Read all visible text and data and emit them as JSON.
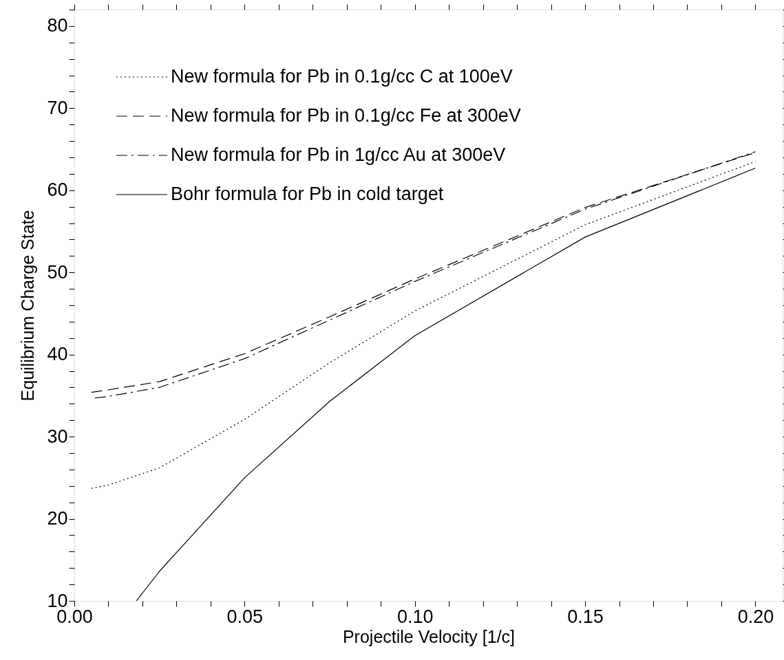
{
  "chart_data": {
    "type": "line",
    "xlabel": "Projectile Velocity [1/c]",
    "ylabel": "Equilibrium Charge State",
    "xlim": [
      0,
      0.208
    ],
    "ylim": [
      10,
      82
    ],
    "xticks": [
      {
        "value": 0,
        "label": "0.00"
      },
      {
        "value": 0.01,
        "label": null
      },
      {
        "value": 0.02,
        "label": null
      },
      {
        "value": 0.03,
        "label": null
      },
      {
        "value": 0.04,
        "label": null
      },
      {
        "value": 0.05,
        "label": "0.05"
      },
      {
        "value": 0.06,
        "label": null
      },
      {
        "value": 0.07,
        "label": null
      },
      {
        "value": 0.08,
        "label": null
      },
      {
        "value": 0.09,
        "label": null
      },
      {
        "value": 0.1,
        "label": "0.10"
      },
      {
        "value": 0.11,
        "label": null
      },
      {
        "value": 0.12,
        "label": null
      },
      {
        "value": 0.13,
        "label": null
      },
      {
        "value": 0.14,
        "label": null
      },
      {
        "value": 0.15,
        "label": "0.15"
      },
      {
        "value": 0.16,
        "label": null
      },
      {
        "value": 0.17,
        "label": null
      },
      {
        "value": 0.18,
        "label": null
      },
      {
        "value": 0.19,
        "label": null
      },
      {
        "value": 0.2,
        "label": "0.20"
      }
    ],
    "yticks": [
      10,
      {
        "value": 12,
        "label": null
      },
      {
        "value": 14,
        "label": null
      },
      {
        "value": 16,
        "label": null
      },
      {
        "value": 18,
        "label": null
      },
      20,
      {
        "value": 22,
        "label": null
      },
      {
        "value": 24,
        "label": null
      },
      {
        "value": 26,
        "label": null
      },
      {
        "value": 28,
        "label": null
      },
      30,
      {
        "value": 32,
        "label": null
      },
      {
        "value": 34,
        "label": null
      },
      {
        "value": 36,
        "label": null
      },
      {
        "value": 38,
        "label": null
      },
      40,
      {
        "value": 42,
        "label": null
      },
      {
        "value": 44,
        "label": null
      },
      {
        "value": 46,
        "label": null
      },
      {
        "value": 48,
        "label": null
      },
      50,
      {
        "value": 52,
        "label": null
      },
      {
        "value": 54,
        "label": null
      },
      {
        "value": 56,
        "label": null
      },
      {
        "value": 58,
        "label": null
      },
      60,
      {
        "value": 62,
        "label": null
      },
      {
        "value": 64,
        "label": null
      },
      {
        "value": 66,
        "label": null
      },
      {
        "value": 68,
        "label": null
      },
      70,
      {
        "value": 72,
        "label": null
      },
      {
        "value": 74,
        "label": null
      },
      {
        "value": 76,
        "label": null
      },
      {
        "value": 78,
        "label": null
      },
      80,
      {
        "value": 82,
        "label": null
      }
    ],
    "grid": false,
    "legend": "top left",
    "marker": "none",
    "series": [
      {
        "name": "New formula for Pb in 0.1g/cc C at 100eV",
        "color": "#000000",
        "line_style": "dotted",
        "x": [
          0.005,
          0.01,
          0.025,
          0.05,
          0.075,
          0.1,
          0.15,
          0.2
        ],
        "values": [
          23.7,
          24.1,
          26.2,
          32.1,
          39.0,
          45.3,
          55.8,
          63.5
        ]
      },
      {
        "name": "New formula for Pb in 0.1g/cc Fe at 300eV",
        "color": "#000000",
        "line_style": "dashed",
        "x": [
          0.005,
          0.01,
          0.025,
          0.05,
          0.075,
          0.1,
          0.15,
          0.2
        ],
        "values": [
          35.4,
          35.7,
          36.7,
          40.1,
          44.6,
          49.2,
          57.9,
          64.6
        ]
      },
      {
        "name": "New formula for Pb in 1g/cc Au at 300eV",
        "color": "#000000",
        "line_style": "dashdot",
        "x": [
          0.006,
          0.01,
          0.025,
          0.05,
          0.075,
          0.1,
          0.15,
          0.2
        ],
        "values": [
          34.7,
          34.9,
          36.0,
          39.5,
          44.2,
          48.9,
          57.7,
          64.7
        ]
      },
      {
        "name": "Bohr formula for Pb in cold target",
        "color": "#000000",
        "line_style": "solid",
        "x": [
          0.0182,
          0.025,
          0.05,
          0.075,
          0.1,
          0.15,
          0.2
        ],
        "values": [
          10,
          13.6,
          25.0,
          34.3,
          42.3,
          54.3,
          62.7
        ]
      }
    ]
  }
}
